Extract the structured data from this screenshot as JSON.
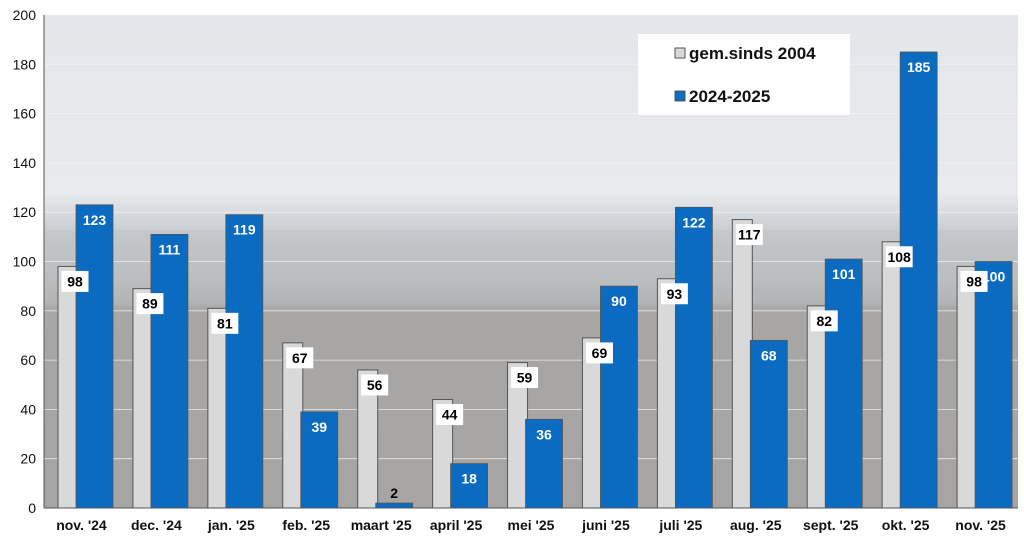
{
  "chart_data": {
    "type": "bar",
    "categories": [
      "nov. '24",
      "dec. '24",
      "jan. '25",
      "feb. '25",
      "maart '25",
      "april '25",
      "mei '25",
      "juni '25",
      "juli '25",
      "aug. '25",
      "sept. '25",
      "okt. '25",
      "nov. '25"
    ],
    "series": [
      {
        "name": "gem.sinds 2004",
        "color": "#d9d9d9",
        "values": [
          98,
          89,
          81,
          67,
          56,
          44,
          59,
          69,
          93,
          117,
          82,
          108,
          98
        ]
      },
      {
        "name": "2024-2025",
        "color": "#0a6bc1",
        "values": [
          123,
          111,
          119,
          39,
          2,
          18,
          36,
          90,
          122,
          68,
          101,
          185,
          100
        ]
      }
    ],
    "y_ticks": [
      "0",
      "20",
      "40",
      "60",
      "80",
      "100",
      "120",
      "140",
      "160",
      "180",
      "200"
    ],
    "ylim": [
      0,
      200
    ],
    "grid": true,
    "legend": "top-right",
    "data_labels": {
      "avg": [
        "98",
        "89",
        "81",
        "67",
        "56",
        "44",
        "59",
        "69",
        "93",
        "117",
        "82",
        "108",
        "98"
      ],
      "cur": [
        "123",
        "111",
        "119",
        "39",
        "2",
        "18",
        "36",
        "90",
        "122",
        "68",
        "101",
        "185",
        "100"
      ]
    }
  }
}
